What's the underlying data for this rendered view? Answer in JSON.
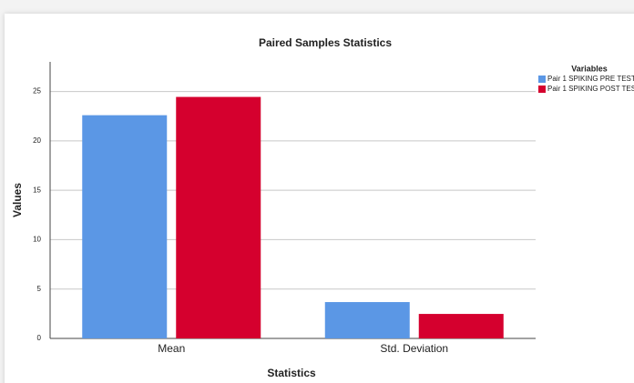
{
  "chart_data": {
    "type": "bar",
    "title": "Paired Samples Statistics",
    "x_label": "Statistics",
    "y_label": "Values",
    "categories": [
      "Mean",
      "Std. Deviation"
    ],
    "legend_title": "Variables",
    "series": [
      {
        "name": "Pair 1 SPIKING PRE TEST",
        "color": "#5b97e5",
        "values": [
          22.6,
          3.68
        ]
      },
      {
        "name": "Pair 1 SPIKING POST TES",
        "color": "#d5002e",
        "values": [
          24.45,
          2.48
        ]
      }
    ],
    "ylim": [
      0,
      28
    ],
    "yticks": [
      0,
      5,
      10,
      15,
      20,
      25
    ],
    "grid": true,
    "legend_position": "right"
  }
}
